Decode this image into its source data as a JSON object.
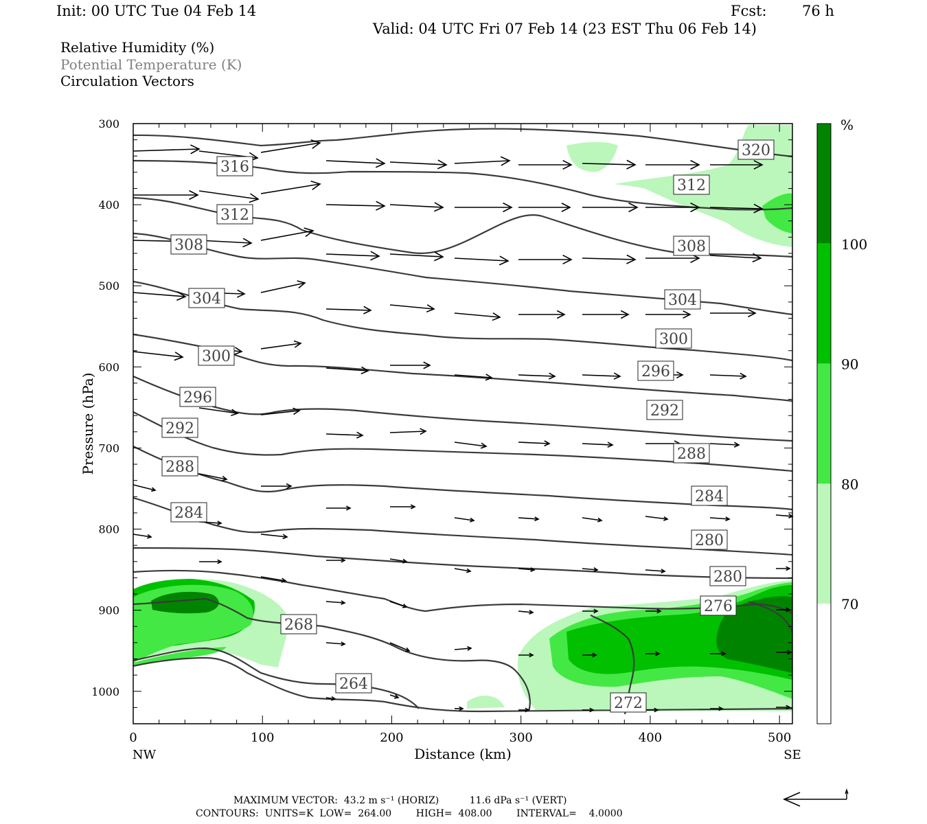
{
  "header": {
    "init": "Init: 00 UTC Tue 04 Feb 14",
    "fcst_label": "Fcst:",
    "fcst_value": "76 h",
    "valid": "Valid: 04 UTC Fri 07 Feb 14 (23 EST Thu 06 Feb 14)"
  },
  "legend": {
    "line1": "Relative Humidity (%)",
    "line2": "Potential Temperature (K)",
    "line3": "Circulation Vectors"
  },
  "footer": {
    "max_vector": "MAXIMUM VECTOR:  43.2 m s⁻¹ (HORIZ)          11.6 dPa s⁻¹ (VERT)",
    "contours": "CONTOURS:  UNITS=K  LOW=  264.00        HIGH=  408.00        INTERVAL=    4.0000"
  },
  "colorbar": {
    "unit_label": "%",
    "levels": [
      "70",
      "80",
      "90",
      "100"
    ],
    "colors": [
      "#ffffff",
      "#bbf7bb",
      "#44e844",
      "#00c000",
      "#008400"
    ]
  },
  "colors": {
    "contour": "#3a3a3a",
    "rh_70_80": "#bbf7bb",
    "rh_80_90": "#44e844",
    "rh_90_100": "#00c000",
    "rh_100_plus": "#008400"
  },
  "chart_data": {
    "type": "cross-section",
    "xlabel": "Distance (km)",
    "ylabel": "Pressure (hPa)",
    "x_ticks": [
      0,
      100,
      200,
      300,
      400,
      500
    ],
    "y_ticks": [
      300,
      400,
      500,
      600,
      700,
      800,
      900,
      1000
    ],
    "xlim": [
      0,
      510
    ],
    "ylim": [
      1040,
      300
    ],
    "x_end_labels": {
      "left": "NW",
      "right": "SE"
    },
    "contour_labels": [
      "320",
      "316",
      "312",
      "312",
      "308",
      "308",
      "304",
      "304",
      "300",
      "300",
      "296",
      "296",
      "292",
      "292",
      "288",
      "288",
      "284",
      "284",
      "280",
      "280",
      "276",
      "268",
      "264",
      "272"
    ]
  }
}
